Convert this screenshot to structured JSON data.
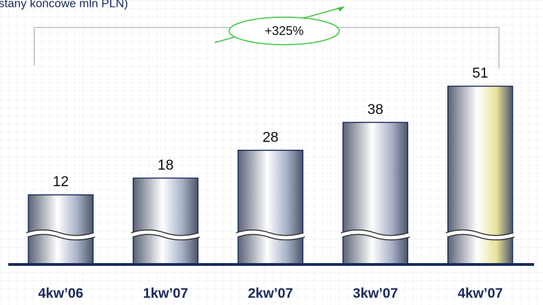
{
  "chart_data": {
    "type": "bar",
    "title": "stany końcowe mln PLN)",
    "annotation": "+325%",
    "categories": [
      "4kw’06",
      "1kw’07",
      "2kw’07",
      "3kw’07",
      "4kw’07"
    ],
    "values": [
      12,
      18,
      28,
      38,
      51
    ],
    "colors": [
      "#a9b2c8",
      "#a9b2c8",
      "#a9b2c8",
      "#a9b2c8",
      "#e8e39a"
    ],
    "ylim": [
      -13,
      60
    ],
    "axis_broken": true
  }
}
